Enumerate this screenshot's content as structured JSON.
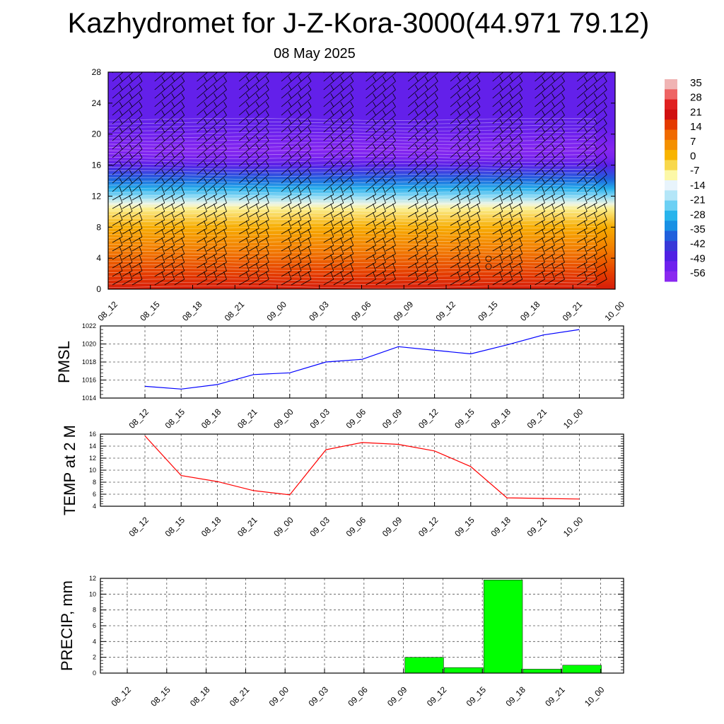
{
  "header": {
    "title": "Kazhydromet for J-Z-Kora-3000(44.971 79.12)",
    "date": "08 May 2025"
  },
  "chart_data": [
    {
      "type": "heatmap",
      "name": "cross-section",
      "y_ticks": [
        "0",
        "4",
        "8",
        "12",
        "16",
        "20",
        "24",
        "28"
      ],
      "ylim": [
        0,
        28
      ],
      "x_ticks": [
        "08_12",
        "08_15",
        "08_18",
        "08_21",
        "09_00",
        "09_03",
        "09_06",
        "09_09",
        "09_12",
        "09_15",
        "09_18",
        "09_21",
        "10_00"
      ],
      "colorbar_labels": [
        "35",
        "28",
        "21",
        "14",
        "7",
        "0",
        "-7",
        "-14",
        "-21",
        "-28",
        "-35",
        "-42",
        "-49",
        "-56"
      ],
      "colorbar_colors": [
        "#f0b4b4",
        "#ee6464",
        "#e02020",
        "#d01010",
        "#e43a00",
        "#f06a00",
        "#f49000",
        "#f8b400",
        "#f8d84c",
        "#fcf8a8",
        "#e8f4fc",
        "#b4e6f8",
        "#6cd0f4",
        "#28b4ec",
        "#1890e4",
        "#2060dc",
        "#3838d8",
        "#5020e4",
        "#6e20ee",
        "#8a28f0"
      ],
      "temperature_by_height": [
        {
          "h": 0,
          "t": 18
        },
        {
          "h": 2,
          "t": 14
        },
        {
          "h": 5,
          "t": 7
        },
        {
          "h": 8,
          "t": 0
        },
        {
          "h": 10.4,
          "t": -10
        },
        {
          "h": 11,
          "t": -15
        },
        {
          "h": 12,
          "t": -25
        },
        {
          "h": 13,
          "t": -33
        },
        {
          "h": 14.2,
          "t": -42
        },
        {
          "h": 16,
          "t": -54
        },
        {
          "h": 17,
          "t": -60
        },
        {
          "h": 18,
          "t": -62
        },
        {
          "h": 20,
          "t": -58
        },
        {
          "h": 21,
          "t": -56
        },
        {
          "h": 28,
          "t": -56
        }
      ]
    },
    {
      "type": "line",
      "name": "pmsl",
      "ylabel": "PMSL",
      "ylim": [
        1014,
        1022
      ],
      "y_ticks": [
        "1014",
        "1016",
        "1018",
        "1020",
        "1022"
      ],
      "categories": [
        "08_12",
        "08_15",
        "08_18",
        "08_21",
        "09_00",
        "09_03",
        "09_06",
        "09_09",
        "09_12",
        "09_15",
        "09_18",
        "09_21",
        "10_00"
      ],
      "values": [
        1015.3,
        1015.0,
        1015.5,
        1016.6,
        1016.8,
        1018.0,
        1018.3,
        1019.7,
        1019.3,
        1018.9,
        1019.9,
        1021.0,
        1021.6
      ],
      "color": "#0000ff"
    },
    {
      "type": "line",
      "name": "temp2m",
      "ylabel": "TEMP at 2 M",
      "ylim": [
        4,
        16
      ],
      "y_ticks": [
        "4",
        "6",
        "8",
        "10",
        "12",
        "14",
        "16"
      ],
      "categories": [
        "08_12",
        "08_15",
        "08_18",
        "08_21",
        "09_00",
        "09_03",
        "09_06",
        "09_09",
        "09_12",
        "09_15",
        "09_18",
        "09_21",
        "10_00"
      ],
      "values": [
        15.7,
        9.1,
        8.1,
        6.6,
        5.9,
        13.4,
        14.6,
        14.3,
        13.2,
        10.6,
        5.4,
        5.3,
        5.2
      ],
      "color": "#ff0000"
    },
    {
      "type": "bar",
      "name": "precip",
      "ylabel": "PRECIP, mm",
      "ylim": [
        0,
        12
      ],
      "y_ticks": [
        "0",
        "2",
        "4",
        "6",
        "8",
        "10",
        "12"
      ],
      "categories": [
        "08_12",
        "08_15",
        "08_18",
        "08_21",
        "09_00",
        "09_03",
        "09_06",
        "09_09",
        "09_12",
        "09_15",
        "09_18",
        "09_21",
        "10_00"
      ],
      "values": [
        0,
        0,
        0,
        0,
        0,
        0,
        0,
        0,
        2.0,
        0.7,
        11.8,
        0.5,
        1.0
      ],
      "color": "#00ff00"
    }
  ]
}
